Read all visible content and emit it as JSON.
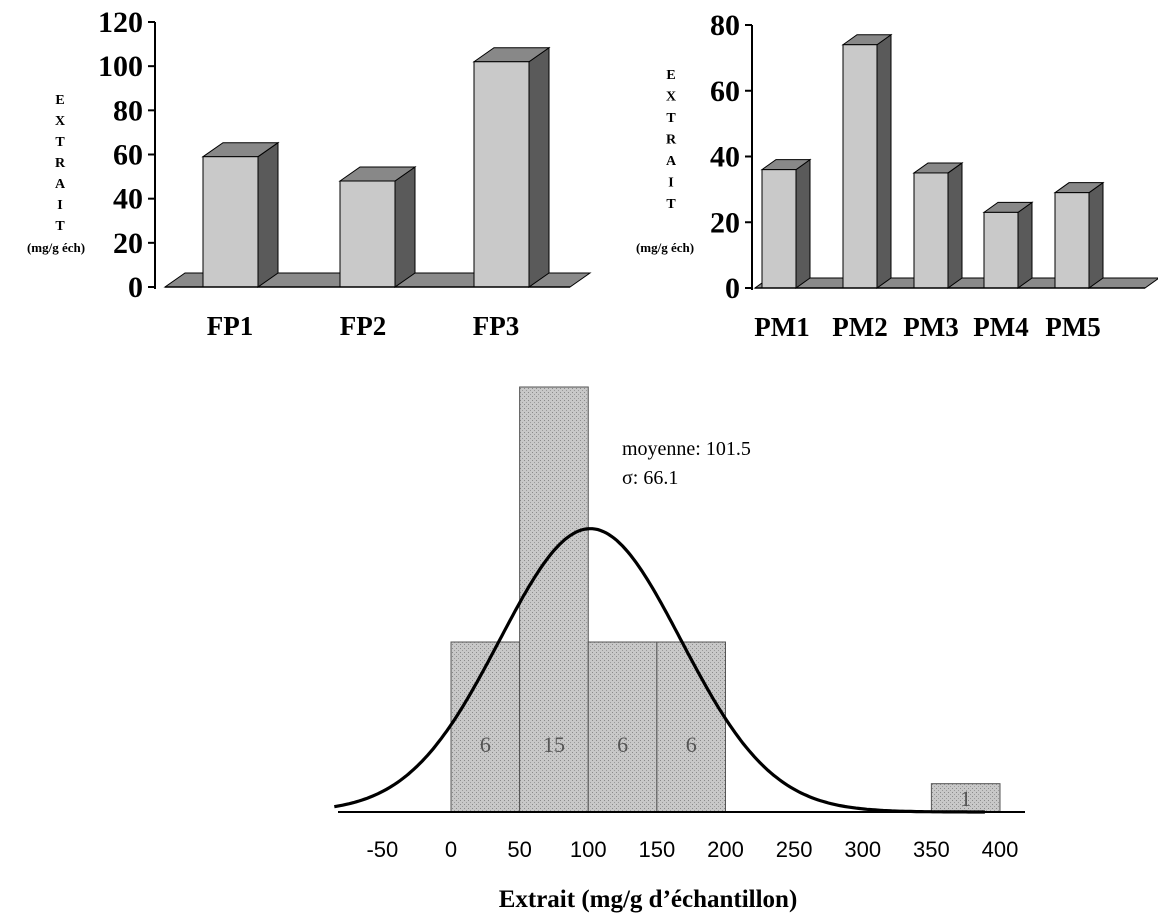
{
  "chart_data": [
    {
      "type": "bar",
      "categories": [
        "FP1",
        "FP2",
        "FP3"
      ],
      "values": [
        59,
        48,
        102
      ],
      "ylim": [
        0,
        120
      ],
      "yticks": [
        "0",
        "20",
        "40",
        "60",
        "80",
        "100",
        "120"
      ],
      "ylabel_letters": [
        "E",
        "X",
        "T",
        "R",
        "A",
        "I",
        "T"
      ],
      "ylabel_unit": "(mg/g éch)",
      "xlabel": "",
      "title": "",
      "grid": false,
      "style": "3d",
      "colors": {
        "front": "#c9c9c9",
        "side": "#5a5a5a",
        "top": "#888888",
        "floor": "#8a8a8a"
      }
    },
    {
      "type": "bar",
      "categories": [
        "PM1",
        "PM2",
        "PM3",
        "PM4",
        "PM5"
      ],
      "values": [
        36,
        74,
        35,
        23,
        29
      ],
      "ylim": [
        0,
        80
      ],
      "yticks": [
        "0",
        "20",
        "40",
        "60",
        "80"
      ],
      "ylabel_letters": [
        "E",
        "X",
        "T",
        "R",
        "A",
        "I",
        "T"
      ],
      "ylabel_unit": "(mg/g éch)",
      "xlabel": "",
      "title": "",
      "grid": false,
      "style": "3d",
      "colors": {
        "front": "#c9c9c9",
        "side": "#5a5a5a",
        "top": "#888888",
        "floor": "#8a8a8a"
      }
    },
    {
      "type": "bar",
      "subtype": "histogram",
      "bins": [
        {
          "from": 0,
          "to": 50,
          "count": 6,
          "label": "6"
        },
        {
          "from": 50,
          "to": 100,
          "count": 15,
          "label": "15"
        },
        {
          "from": 100,
          "to": 150,
          "count": 6,
          "label": "6"
        },
        {
          "from": 150,
          "to": 200,
          "count": 6,
          "label": "6"
        },
        {
          "from": 350,
          "to": 400,
          "count": 1,
          "label": "1"
        }
      ],
      "xticks": [
        "-50",
        "0",
        "50",
        "100",
        "150",
        "200",
        "250",
        "300",
        "350",
        "400"
      ],
      "xlim": [
        -80,
        420
      ],
      "ylim": [
        0,
        15
      ],
      "xlabel": "Extrait (mg/g d’échantillon)",
      "normal_curve": {
        "mean": 101.5,
        "sd": 66.1,
        "peak_count": 10
      },
      "annotations": [
        "moyenne: 101.5",
        "σ: 66.1"
      ],
      "grid": false,
      "colors": {
        "bar": "#c8c8c8",
        "curve": "#000000"
      }
    }
  ]
}
